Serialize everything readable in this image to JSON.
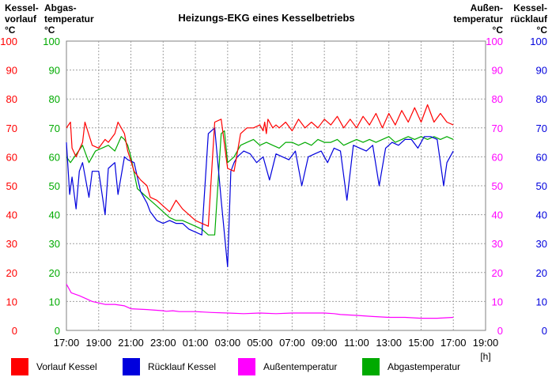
{
  "chart_data": {
    "type": "line",
    "title": "Heizungs-EKG eines Kesselbetriebs",
    "x_tick_labels": [
      "17:00",
      "19:00",
      "21:00",
      "23:00",
      "01:00",
      "03:00",
      "05:00",
      "07:00",
      "09:00",
      "11:00",
      "13:00",
      "15:00",
      "17:00",
      "19:00"
    ],
    "x_unit": "[h]",
    "ylim": [
      0,
      100
    ],
    "y_ticks": [
      0,
      10,
      20,
      30,
      40,
      50,
      60,
      70,
      80,
      90,
      100
    ],
    "grid": true,
    "legend_position": "bottom",
    "axes": [
      {
        "id": "kesselvorlauf",
        "title_lines": [
          "Kessel-",
          "vorlauf",
          "°C"
        ],
        "side": "left",
        "color": "#ff0000"
      },
      {
        "id": "abgastemperatur",
        "title_lines": [
          "Abgas-",
          "temperatur",
          "°C"
        ],
        "side": "left",
        "color": "#00aa00"
      },
      {
        "id": "aussentemperatur",
        "title_lines": [
          "Außen-",
          "temperatur",
          "°C"
        ],
        "side": "right",
        "color": "#ff00ff"
      },
      {
        "id": "kesselruecklauf",
        "title_lines": [
          "Kessel-",
          "rücklauf",
          "°C"
        ],
        "side": "right",
        "color": "#0000dd"
      }
    ],
    "series": [
      {
        "name": "Vorlauf Kessel",
        "color": "#ff0000",
        "x": [
          0,
          0.25,
          0.35,
          0.6,
          1.0,
          1.15,
          1.6,
          2.0,
          2.4,
          2.6,
          3.0,
          3.2,
          3.6,
          3.8,
          4.2,
          4.6,
          5.0,
          5.2,
          5.6,
          6.0,
          6.4,
          6.8,
          7.2,
          7.6,
          8.0,
          8.4,
          8.8,
          9.2,
          9.6,
          10.0,
          10.4,
          10.8,
          11.2,
          11.6,
          12.0,
          12.2,
          12.3,
          12.4,
          12.5,
          12.8,
          13.0,
          13.2,
          13.6,
          14.0,
          14.4,
          14.8,
          15.2,
          15.6,
          16.0,
          16.4,
          16.8,
          17.2,
          17.6,
          18.0,
          18.4,
          18.8,
          19.2,
          19.6,
          20.0,
          20.4,
          20.8,
          21.2,
          21.6,
          22.0,
          22.4,
          22.8,
          23.2,
          23.6,
          24.0
        ],
        "values": [
          70,
          72,
          63,
          60,
          65,
          72,
          64,
          63,
          66,
          65,
          68,
          72,
          68,
          62,
          55,
          52,
          50,
          46,
          45,
          43,
          41,
          45,
          42,
          40,
          38,
          37,
          36,
          72,
          73,
          56,
          55,
          68,
          70,
          70,
          71,
          69,
          72,
          68,
          73,
          70,
          71,
          70,
          72,
          69,
          73,
          70,
          72,
          70,
          73,
          71,
          74,
          70,
          73,
          70,
          74,
          71,
          75,
          70,
          75,
          71,
          76,
          72,
          77,
          72,
          78,
          72,
          75,
          72,
          71
        ]
      },
      {
        "name": "Rücklauf Kessel",
        "color": "#0000dd",
        "x": [
          0,
          0.2,
          0.35,
          0.6,
          0.8,
          1.0,
          1.4,
          1.6,
          2.0,
          2.4,
          2.6,
          3.0,
          3.2,
          3.6,
          3.8,
          4.2,
          4.6,
          5.0,
          5.2,
          5.6,
          6.0,
          6.4,
          6.8,
          7.2,
          7.6,
          8.0,
          8.4,
          8.8,
          9.2,
          9.6,
          10.0,
          10.2,
          10.4,
          10.6,
          11.0,
          11.4,
          11.8,
          12.2,
          12.6,
          13.0,
          13.4,
          13.8,
          14.2,
          14.6,
          15.0,
          15.4,
          15.8,
          16.2,
          16.6,
          17.0,
          17.4,
          17.8,
          18.2,
          18.6,
          19.0,
          19.4,
          19.8,
          20.2,
          20.6,
          21.0,
          21.4,
          21.8,
          22.2,
          22.6,
          23.0,
          23.4,
          23.6,
          24.0
        ],
        "values": [
          65,
          47,
          53,
          42,
          55,
          58,
          46,
          55,
          55,
          40,
          56,
          58,
          47,
          60,
          59,
          58,
          48,
          44,
          41,
          38,
          37,
          38,
          37,
          37,
          35,
          34,
          33,
          68,
          70,
          45,
          22,
          55,
          58,
          60,
          62,
          61,
          58,
          60,
          52,
          61,
          60,
          59,
          62,
          50,
          60,
          61,
          62,
          58,
          63,
          62,
          45,
          64,
          63,
          62,
          64,
          50,
          63,
          65,
          64,
          66,
          66,
          63,
          67,
          67,
          66,
          50,
          58,
          62
        ]
      },
      {
        "name": "Außentemperatur",
        "color": "#ff00ff",
        "x": [
          0,
          0.3,
          0.8,
          1.2,
          1.6,
          2.0,
          2.4,
          3.0,
          3.6,
          4.0,
          5.0,
          6.0,
          6.2,
          6.6,
          7.0,
          8.0,
          9.0,
          10.0,
          11.0,
          12.0,
          13.0,
          14.0,
          15.0,
          16.0,
          16.6,
          17.0,
          18.0,
          19.0,
          20.0,
          21.0,
          22.0,
          23.0,
          24.0
        ],
        "values": [
          16,
          13,
          12,
          11,
          10,
          9.5,
          9,
          9,
          8.5,
          7.5,
          7.2,
          6.8,
          6.6,
          6.8,
          6.5,
          6.5,
          6.2,
          6.0,
          5.8,
          6.0,
          5.8,
          6.0,
          6.0,
          6.0,
          5.8,
          5.5,
          5.2,
          4.8,
          4.5,
          4.5,
          4.2,
          4.2,
          4.5
        ]
      },
      {
        "name": "Abgastemperatur",
        "color": "#00aa00",
        "x": [
          0,
          0.25,
          0.5,
          1.0,
          1.4,
          1.8,
          2.2,
          2.6,
          3.0,
          3.4,
          3.6,
          3.8,
          4.0,
          4.4,
          4.8,
          5.2,
          5.6,
          6.0,
          6.4,
          6.8,
          7.2,
          7.6,
          8.0,
          8.4,
          8.6,
          8.8,
          9.2,
          9.6,
          9.8,
          10.0,
          10.4,
          10.8,
          11.2,
          11.6,
          12.0,
          12.4,
          12.8,
          13.2,
          13.6,
          14.0,
          14.4,
          14.8,
          15.2,
          15.6,
          16.0,
          16.4,
          16.8,
          17.2,
          17.6,
          18.0,
          18.4,
          18.8,
          19.2,
          19.6,
          20.0,
          20.4,
          20.8,
          21.2,
          21.6,
          22.0,
          22.4,
          22.8,
          23.2,
          23.6,
          24.0
        ],
        "values": [
          60,
          58,
          60,
          64,
          58,
          62,
          63,
          64,
          62,
          67,
          66,
          64,
          60,
          49,
          47,
          45,
          43,
          41,
          39,
          38,
          38,
          37,
          36,
          35,
          34,
          33,
          33,
          68,
          69,
          58,
          60,
          64,
          65,
          66,
          64,
          65,
          64,
          63,
          65,
          65,
          64,
          65,
          64,
          66,
          65,
          65,
          66,
          64,
          65,
          66,
          65,
          66,
          65,
          66,
          67,
          65,
          66,
          67,
          66,
          67,
          66,
          67,
          66,
          67,
          66
        ]
      }
    ]
  }
}
